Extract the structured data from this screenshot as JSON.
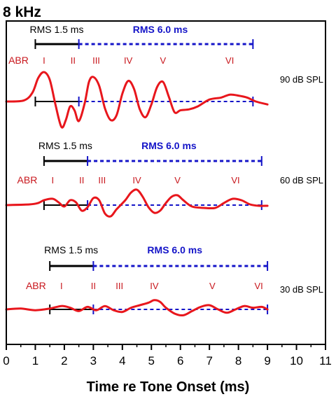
{
  "chart_data": {
    "type": "line",
    "title": "8 kHz",
    "xlabel": "Time re Tone Onset (ms)",
    "ylabel": "",
    "xlim": [
      0,
      11
    ],
    "x_ticks": [
      "0",
      "1",
      "2",
      "3",
      "4",
      "5",
      "6",
      "7",
      "8",
      "9",
      "10",
      "11"
    ],
    "colors": {
      "trace": "#e8161c",
      "early_window": "#000000",
      "late_window": "#1414c8",
      "wave_label": "#c8161c",
      "axis": "#000000"
    },
    "panels": [
      {
        "level_label": "90 dB SPL",
        "rms_early_label": "RMS 1.5 ms",
        "rms_late_label": "RMS  6.0 ms",
        "early_window_ms": [
          1.0,
          2.5
        ],
        "late_window_ms": [
          2.5,
          8.5
        ],
        "abr_label": "ABR",
        "waves": [
          {
            "label": "I",
            "t": 1.3
          },
          {
            "label": "II",
            "t": 2.3
          },
          {
            "label": "III",
            "t": 3.1
          },
          {
            "label": "IV",
            "t": 4.2
          },
          {
            "label": "V",
            "t": 5.4
          },
          {
            "label": "VI",
            "t": 7.7
          }
        ],
        "trace": {
          "x": [
            0,
            0.6,
            0.9,
            1.1,
            1.3,
            1.5,
            1.7,
            1.9,
            2.05,
            2.2,
            2.35,
            2.5,
            2.7,
            2.85,
            3.0,
            3.2,
            3.4,
            3.6,
            3.8,
            4.0,
            4.2,
            4.4,
            4.6,
            4.8,
            5.0,
            5.2,
            5.4,
            5.6,
            5.8,
            6.0,
            6.3,
            6.6,
            7.0,
            7.4,
            7.7,
            8.0,
            8.3,
            8.6,
            9.0
          ],
          "y": [
            0,
            0.1,
            0.9,
            2.4,
            3.0,
            2.2,
            -0.4,
            -2.6,
            -1.9,
            -0.5,
            -0.9,
            -2.0,
            -0.2,
            2.0,
            2.5,
            1.6,
            -0.7,
            -1.9,
            -1.4,
            0.8,
            2.1,
            1.3,
            -0.8,
            -1.6,
            -0.3,
            1.5,
            2.0,
            0.5,
            -1.1,
            -0.9,
            -0.8,
            -0.5,
            0.2,
            0.4,
            0.7,
            0.6,
            0.4,
            0.0,
            -0.3
          ]
        }
      },
      {
        "level_label": "60 dB SPL",
        "rms_early_label": "RMS 1.5 ms",
        "rms_late_label": "RMS  6.0 ms",
        "early_window_ms": [
          1.3,
          2.8
        ],
        "late_window_ms": [
          2.8,
          8.8
        ],
        "abr_label": "ABR",
        "waves": [
          {
            "label": "I",
            "t": 1.6
          },
          {
            "label": "II",
            "t": 2.6
          },
          {
            "label": "III",
            "t": 3.3
          },
          {
            "label": "IV",
            "t": 4.5
          },
          {
            "label": "V",
            "t": 5.9
          },
          {
            "label": "VI",
            "t": 7.9
          }
        ],
        "trace": {
          "x": [
            0,
            0.8,
            1.1,
            1.3,
            1.6,
            1.8,
            2.0,
            2.2,
            2.4,
            2.6,
            2.8,
            3.0,
            3.2,
            3.4,
            3.6,
            3.8,
            4.1,
            4.3,
            4.5,
            4.7,
            4.9,
            5.1,
            5.3,
            5.5,
            5.7,
            5.9,
            6.1,
            6.4,
            6.8,
            7.2,
            7.5,
            7.8,
            8.1,
            8.4,
            8.7,
            9.0
          ],
          "y": [
            0,
            0.1,
            0.3,
            0.7,
            0.9,
            0.4,
            -0.2,
            0.7,
            0.4,
            -0.8,
            -0.3,
            1.0,
            0.7,
            -1.2,
            -1.6,
            -0.6,
            0.7,
            1.8,
            2.2,
            1.2,
            -0.3,
            -1.1,
            -0.8,
            0.3,
            1.2,
            1.4,
            0.7,
            -0.2,
            -0.4,
            -0.4,
            0.3,
            0.9,
            0.7,
            0.1,
            -0.1,
            -0.1
          ]
        }
      },
      {
        "level_label": "30 dB SPL",
        "rms_early_label": "RMS 1.5 ms",
        "rms_late_label": "RMS  6.0 ms",
        "early_window_ms": [
          1.5,
          3.0
        ],
        "late_window_ms": [
          3.0,
          9.0
        ],
        "abr_label": "ABR",
        "waves": [
          {
            "label": "I",
            "t": 1.9
          },
          {
            "label": "II",
            "t": 3.0
          },
          {
            "label": "III",
            "t": 3.9
          },
          {
            "label": "IV",
            "t": 5.1
          },
          {
            "label": "V",
            "t": 7.1
          },
          {
            "label": "VI",
            "t": 8.7
          }
        ],
        "trace": {
          "x": [
            0,
            0.5,
            1.0,
            1.5,
            1.9,
            2.2,
            2.5,
            2.8,
            3.1,
            3.4,
            3.7,
            4.0,
            4.3,
            4.6,
            4.9,
            5.1,
            5.3,
            5.5,
            5.8,
            6.1,
            6.4,
            6.7,
            7.0,
            7.3,
            7.6,
            7.9,
            8.2,
            8.5,
            8.8,
            9.0
          ],
          "y": [
            0,
            0.1,
            -0.1,
            0.1,
            0.4,
            0.2,
            -0.2,
            0.3,
            -0.1,
            0.4,
            -0.1,
            -0.3,
            0.2,
            0.5,
            0.8,
            1.1,
            0.9,
            0.2,
            -0.5,
            -0.7,
            -0.2,
            0.3,
            0.5,
            0.0,
            -0.4,
            0.0,
            0.4,
            0.2,
            0.3,
            0.0
          ]
        }
      }
    ]
  }
}
